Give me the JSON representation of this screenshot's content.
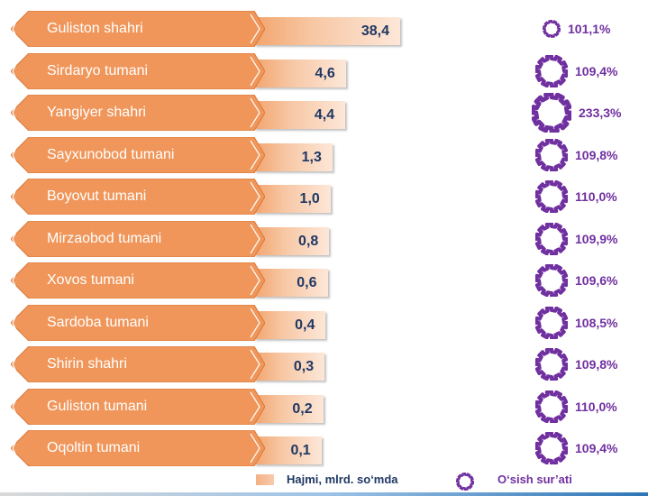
{
  "chart_data": {
    "type": "bar",
    "orientation": "horizontal",
    "categories": [
      "Guliston shahri",
      "Sirdaryo tumani",
      "Yangiyer shahri",
      "Sayxunobod tumani",
      "Boyovut tumani",
      "Mirzaobod tumani",
      "Xovos tumani",
      "Sardoba tumani",
      "Shirin shahri",
      "Guliston tumani",
      "Oqoltin tumani"
    ],
    "series": [
      {
        "name": "Hajmi, mlrd. so‘mda",
        "values": [
          38.4,
          4.6,
          4.4,
          1.3,
          1.0,
          0.8,
          0.6,
          0.4,
          0.3,
          0.2,
          0.1
        ],
        "labels": [
          "38,4",
          "4,6",
          "4,4",
          "1,3",
          "1,0",
          "0,8",
          "0,6",
          "0,4",
          "0,3",
          "0,2",
          "0,1"
        ],
        "color": "#f4b183"
      },
      {
        "name": "O‘sish sur’ati",
        "values": [
          101.1,
          109.4,
          233.3,
          109.8,
          110.0,
          109.9,
          109.6,
          108.5,
          109.8,
          110.0,
          109.4
        ],
        "labels": [
          "101,1%",
          "109,4%",
          "233,3%",
          "109,8%",
          "110,0%",
          "109,9%",
          "109,6%",
          "108,5%",
          "109,8%",
          "110,0%",
          "109,4%"
        ],
        "color": "#7030a0"
      }
    ],
    "legend_position": "bottom"
  },
  "colors": {
    "banner": "#f0965a",
    "banner_edge": "#d97a3c",
    "value_text": "#1f3864",
    "gear": "#7030a0"
  }
}
